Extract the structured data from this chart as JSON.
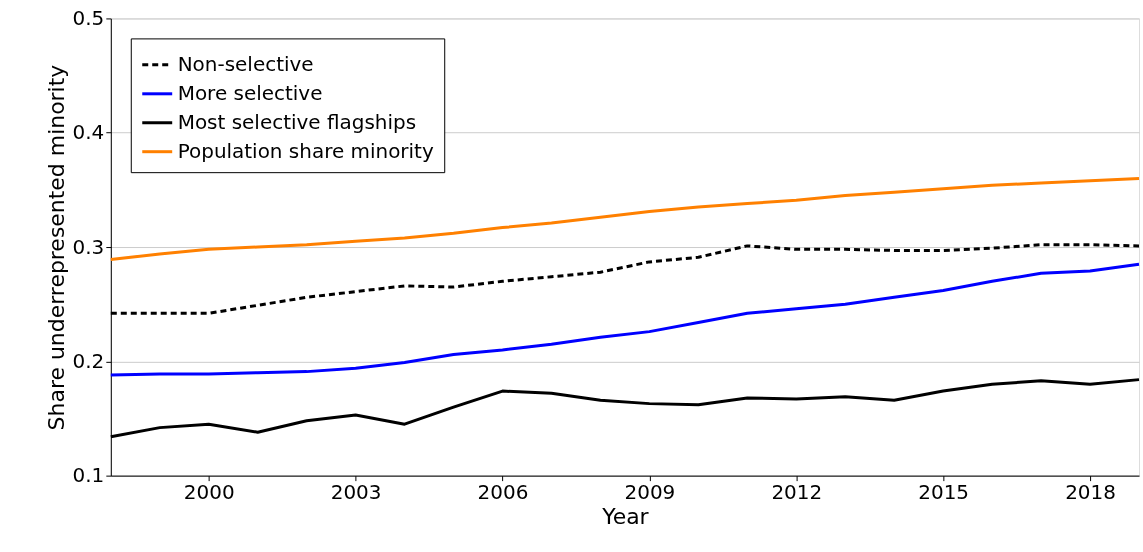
{
  "chart_data": {
    "type": "line",
    "xlabel": "Year",
    "ylabel": "Share underrepresented minority",
    "x": [
      1998,
      1999,
      2000,
      2001,
      2002,
      2003,
      2004,
      2005,
      2006,
      2007,
      2008,
      2009,
      2010,
      2011,
      2012,
      2013,
      2014,
      2015,
      2016,
      2017,
      2018,
      2019
    ],
    "xlim": [
      1998,
      2019
    ],
    "xticks": [
      2000,
      2003,
      2006,
      2009,
      2012,
      2015,
      2018
    ],
    "ylim": [
      0.1,
      0.5
    ],
    "yticks": [
      0.1,
      0.2,
      0.3,
      0.4,
      0.5
    ],
    "grid": "y",
    "legend": "top left",
    "marker": "none",
    "series": [
      {
        "name": "Non-selective",
        "color": "#000000",
        "line_style": "dashed",
        "values": [
          0.242,
          0.242,
          0.242,
          0.249,
          0.256,
          0.261,
          0.266,
          0.265,
          0.27,
          0.274,
          0.278,
          0.287,
          0.291,
          0.301,
          0.298,
          0.298,
          0.297,
          0.297,
          0.299,
          0.302,
          0.302,
          0.301
        ]
      },
      {
        "name": "More selective",
        "color": "#0000ff",
        "line_style": "solid",
        "values": [
          0.188,
          0.189,
          0.189,
          0.19,
          0.191,
          0.194,
          0.199,
          0.206,
          0.21,
          0.215,
          0.221,
          0.226,
          0.234,
          0.242,
          0.246,
          0.25,
          0.256,
          0.262,
          0.27,
          0.277,
          0.279,
          0.285
        ]
      },
      {
        "name": "Most selective flagships",
        "color": "#000000",
        "line_style": "solid",
        "values": [
          0.134,
          0.142,
          0.145,
          0.138,
          0.148,
          0.153,
          0.145,
          0.16,
          0.174,
          0.172,
          0.166,
          0.163,
          0.162,
          0.168,
          0.167,
          0.169,
          0.166,
          0.174,
          0.18,
          0.183,
          0.18,
          0.184
        ]
      },
      {
        "name": "Population share minority",
        "color": "#ff8000",
        "line_style": "solid",
        "values": [
          0.289,
          0.294,
          0.298,
          0.3,
          0.302,
          0.305,
          0.308,
          0.312,
          0.317,
          0.321,
          0.326,
          0.331,
          0.335,
          0.338,
          0.341,
          0.345,
          0.348,
          0.351,
          0.354,
          0.356,
          0.358,
          0.36
        ]
      }
    ]
  }
}
